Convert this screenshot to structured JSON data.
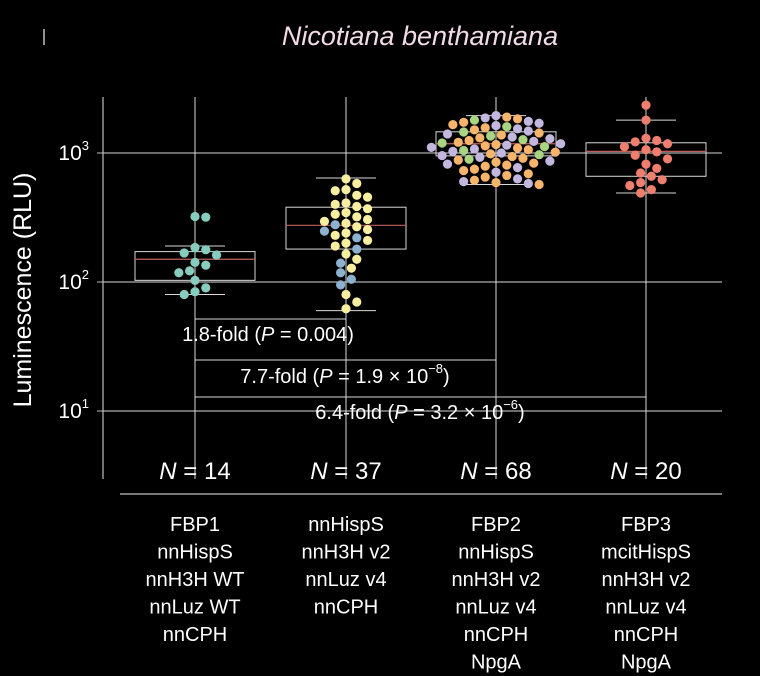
{
  "chart_data": {
    "type": "box-swarm",
    "title": "Nicotiana benthamiana",
    "ylabel": "Luminescence (RLU)",
    "xlabel": "",
    "yscale": "log",
    "ylim": [
      3,
      2800
    ],
    "yticks": [
      {
        "value": 10,
        "base": "10",
        "exp": "1"
      },
      {
        "value": 100,
        "base": "10",
        "exp": "2"
      },
      {
        "value": 1000,
        "base": "10",
        "exp": "3"
      }
    ],
    "groups": [
      {
        "name": "FBP1 nnHispS nnH3H WT nnLuz WT nnCPH",
        "label_lines": [
          "FBP1",
          "nnHispS",
          "nnH3H WT",
          "nnLuz WT",
          "nnCPH"
        ],
        "n_text": "= 14",
        "box": {
          "q1": 103,
          "median": 150,
          "q3": 172,
          "whisker_low": 80,
          "whisker_high": 190
        },
        "points": [
          {
            "v": 322,
            "c": "teal"
          },
          {
            "v": 318,
            "c": "teal"
          },
          {
            "v": 185,
            "c": "teal"
          },
          {
            "v": 178,
            "c": "teal"
          },
          {
            "v": 168,
            "c": "teal"
          },
          {
            "v": 162,
            "c": "teal"
          },
          {
            "v": 142,
            "c": "teal"
          },
          {
            "v": 135,
            "c": "teal"
          },
          {
            "v": 122,
            "c": "teal"
          },
          {
            "v": 118,
            "c": "teal"
          },
          {
            "v": 103,
            "c": "teal"
          },
          {
            "v": 90,
            "c": "teal"
          },
          {
            "v": 84,
            "c": "teal"
          },
          {
            "v": 80,
            "c": "teal"
          }
        ]
      },
      {
        "name": "nnHispS nnH3H v2 nnLuz v4 nnCPH",
        "label_lines": [
          "nnHispS",
          "nnH3H v2",
          "nnLuz v4",
          "nnCPH"
        ],
        "n_text": "= 37",
        "box": {
          "q1": 180,
          "median": 275,
          "q3": 380,
          "whisker_low": 60,
          "whisker_high": 640
        },
        "points": [
          {
            "v": 630,
            "c": "yellow"
          },
          {
            "v": 580,
            "c": "yellow"
          },
          {
            "v": 520,
            "c": "yellow"
          },
          {
            "v": 510,
            "c": "yellow"
          },
          {
            "v": 470,
            "c": "yellow"
          },
          {
            "v": 455,
            "c": "yellow"
          },
          {
            "v": 410,
            "c": "yellow"
          },
          {
            "v": 400,
            "c": "yellow"
          },
          {
            "v": 385,
            "c": "yellow"
          },
          {
            "v": 370,
            "c": "yellow"
          },
          {
            "v": 345,
            "c": "yellow"
          },
          {
            "v": 335,
            "c": "yellow"
          },
          {
            "v": 320,
            "c": "yellow"
          },
          {
            "v": 305,
            "c": "yellow"
          },
          {
            "v": 295,
            "c": "yellow"
          },
          {
            "v": 285,
            "c": "yellow"
          },
          {
            "v": 278,
            "c": "blue"
          },
          {
            "v": 268,
            "c": "yellow"
          },
          {
            "v": 255,
            "c": "yellow"
          },
          {
            "v": 248,
            "c": "blue"
          },
          {
            "v": 240,
            "c": "yellow"
          },
          {
            "v": 230,
            "c": "yellow"
          },
          {
            "v": 220,
            "c": "blue"
          },
          {
            "v": 210,
            "c": "yellow"
          },
          {
            "v": 200,
            "c": "yellow"
          },
          {
            "v": 190,
            "c": "yellow"
          },
          {
            "v": 180,
            "c": "blue"
          },
          {
            "v": 165,
            "c": "yellow"
          },
          {
            "v": 150,
            "c": "yellow"
          },
          {
            "v": 140,
            "c": "blue"
          },
          {
            "v": 128,
            "c": "yellow"
          },
          {
            "v": 118,
            "c": "blue"
          },
          {
            "v": 105,
            "c": "blue"
          },
          {
            "v": 95,
            "c": "blue"
          },
          {
            "v": 80,
            "c": "yellow"
          },
          {
            "v": 70,
            "c": "yellow"
          },
          {
            "v": 62,
            "c": "yellow"
          }
        ]
      },
      {
        "name": "FBP2 nnHispS nnH3H v2 nnLuz v4 nnCPH NpgA",
        "label_lines": [
          "FBP2",
          "nnHispS",
          "nnH3H v2",
          "nnLuz v4",
          "nnCPH",
          "NpgA"
        ],
        "n_text": "= 68",
        "box": {
          "q1": 950,
          "median": 1180,
          "q3": 1460,
          "whisker_low": 570,
          "whisker_high": 1950
        },
        "points": [
          {
            "v": 1950,
            "c": "purple"
          },
          {
            "v": 1900,
            "c": "orange"
          },
          {
            "v": 1870,
            "c": "purple"
          },
          {
            "v": 1840,
            "c": "orange"
          },
          {
            "v": 1800,
            "c": "green"
          },
          {
            "v": 1760,
            "c": "purple"
          },
          {
            "v": 1730,
            "c": "orange"
          },
          {
            "v": 1700,
            "c": "purple"
          },
          {
            "v": 1660,
            "c": "orange"
          },
          {
            "v": 1630,
            "c": "purple"
          },
          {
            "v": 1600,
            "c": "green"
          },
          {
            "v": 1570,
            "c": "orange"
          },
          {
            "v": 1540,
            "c": "purple"
          },
          {
            "v": 1510,
            "c": "orange"
          },
          {
            "v": 1480,
            "c": "purple"
          },
          {
            "v": 1455,
            "c": "green"
          },
          {
            "v": 1430,
            "c": "orange"
          },
          {
            "v": 1405,
            "c": "purple"
          },
          {
            "v": 1380,
            "c": "orange"
          },
          {
            "v": 1355,
            "c": "green"
          },
          {
            "v": 1330,
            "c": "purple"
          },
          {
            "v": 1310,
            "c": "orange"
          },
          {
            "v": 1290,
            "c": "purple"
          },
          {
            "v": 1270,
            "c": "green"
          },
          {
            "v": 1250,
            "c": "orange"
          },
          {
            "v": 1230,
            "c": "purple"
          },
          {
            "v": 1210,
            "c": "orange"
          },
          {
            "v": 1195,
            "c": "green"
          },
          {
            "v": 1180,
            "c": "purple"
          },
          {
            "v": 1165,
            "c": "orange"
          },
          {
            "v": 1150,
            "c": "purple"
          },
          {
            "v": 1135,
            "c": "orange"
          },
          {
            "v": 1120,
            "c": "green"
          },
          {
            "v": 1105,
            "c": "purple"
          },
          {
            "v": 1090,
            "c": "orange"
          },
          {
            "v": 1075,
            "c": "purple"
          },
          {
            "v": 1060,
            "c": "orange"
          },
          {
            "v": 1045,
            "c": "green"
          },
          {
            "v": 1030,
            "c": "purple"
          },
          {
            "v": 1015,
            "c": "orange"
          },
          {
            "v": 1000,
            "c": "purple"
          },
          {
            "v": 985,
            "c": "orange"
          },
          {
            "v": 970,
            "c": "green"
          },
          {
            "v": 955,
            "c": "purple"
          },
          {
            "v": 940,
            "c": "orange"
          },
          {
            "v": 925,
            "c": "purple"
          },
          {
            "v": 910,
            "c": "orange"
          },
          {
            "v": 895,
            "c": "green"
          },
          {
            "v": 880,
            "c": "orange"
          },
          {
            "v": 865,
            "c": "purple"
          },
          {
            "v": 850,
            "c": "orange"
          },
          {
            "v": 835,
            "c": "orange"
          },
          {
            "v": 820,
            "c": "purple"
          },
          {
            "v": 805,
            "c": "orange"
          },
          {
            "v": 790,
            "c": "orange"
          },
          {
            "v": 770,
            "c": "purple"
          },
          {
            "v": 750,
            "c": "orange"
          },
          {
            "v": 730,
            "c": "orange"
          },
          {
            "v": 710,
            "c": "purple"
          },
          {
            "v": 690,
            "c": "orange"
          },
          {
            "v": 670,
            "c": "orange"
          },
          {
            "v": 650,
            "c": "orange"
          },
          {
            "v": 630,
            "c": "purple"
          },
          {
            "v": 615,
            "c": "orange"
          },
          {
            "v": 600,
            "c": "purple"
          },
          {
            "v": 590,
            "c": "orange"
          },
          {
            "v": 580,
            "c": "purple"
          },
          {
            "v": 570,
            "c": "orange"
          }
        ]
      },
      {
        "name": "FBP3 mcitHispS nnH3H v2 nnLuz v4 nnCPH NpgA",
        "label_lines": [
          "FBP3",
          "mcitHispS",
          "nnH3H v2",
          "nnLuz v4",
          "nnCPH",
          "NpgA"
        ],
        "n_text": "= 20",
        "box": {
          "q1": 660,
          "median": 1030,
          "q3": 1200,
          "whisker_low": 490,
          "whisker_high": 1800
        },
        "points": [
          {
            "v": 2350,
            "c": "red"
          },
          {
            "v": 1800,
            "c": "red"
          },
          {
            "v": 1300,
            "c": "red"
          },
          {
            "v": 1250,
            "c": "red"
          },
          {
            "v": 1220,
            "c": "red"
          },
          {
            "v": 1180,
            "c": "red"
          },
          {
            "v": 1120,
            "c": "red"
          },
          {
            "v": 1060,
            "c": "red"
          },
          {
            "v": 1020,
            "c": "red"
          },
          {
            "v": 960,
            "c": "red"
          },
          {
            "v": 900,
            "c": "red"
          },
          {
            "v": 820,
            "c": "red"
          },
          {
            "v": 760,
            "c": "red"
          },
          {
            "v": 700,
            "c": "red"
          },
          {
            "v": 660,
            "c": "red"
          },
          {
            "v": 620,
            "c": "red"
          },
          {
            "v": 590,
            "c": "red"
          },
          {
            "v": 560,
            "c": "red"
          },
          {
            "v": 520,
            "c": "red"
          },
          {
            "v": 490,
            "c": "red"
          }
        ]
      }
    ],
    "comparisons": [
      {
        "groups": [
          1,
          2
        ],
        "fold": "1.8-fold (",
        "p_italic": "P",
        "p_text": " = 0.004)",
        "p_exp": ""
      },
      {
        "groups": [
          1,
          3
        ],
        "fold": "7.7-fold (",
        "p_italic": "P",
        "p_text": " = 1.9 × 10",
        "p_exp": "−8",
        "close": ")"
      },
      {
        "groups": [
          1,
          4
        ],
        "fold": "6.4-fold (",
        "p_italic": "P",
        "p_text": " = 3.2 × 10",
        "p_exp": "−6",
        "close": ")"
      }
    ],
    "n_prefix": "N",
    "colors": {
      "teal": "#86cdbf",
      "yellow": "#f7ef9f",
      "blue": "#8cb2cf",
      "purple": "#c3b7e0",
      "orange": "#f7b46b",
      "green": "#a9d582",
      "red": "#f07e6e",
      "axis": "#bfbfbf",
      "grid": "#d9d9d9",
      "box": "#d9d9d9",
      "median": "#c0605a"
    }
  }
}
